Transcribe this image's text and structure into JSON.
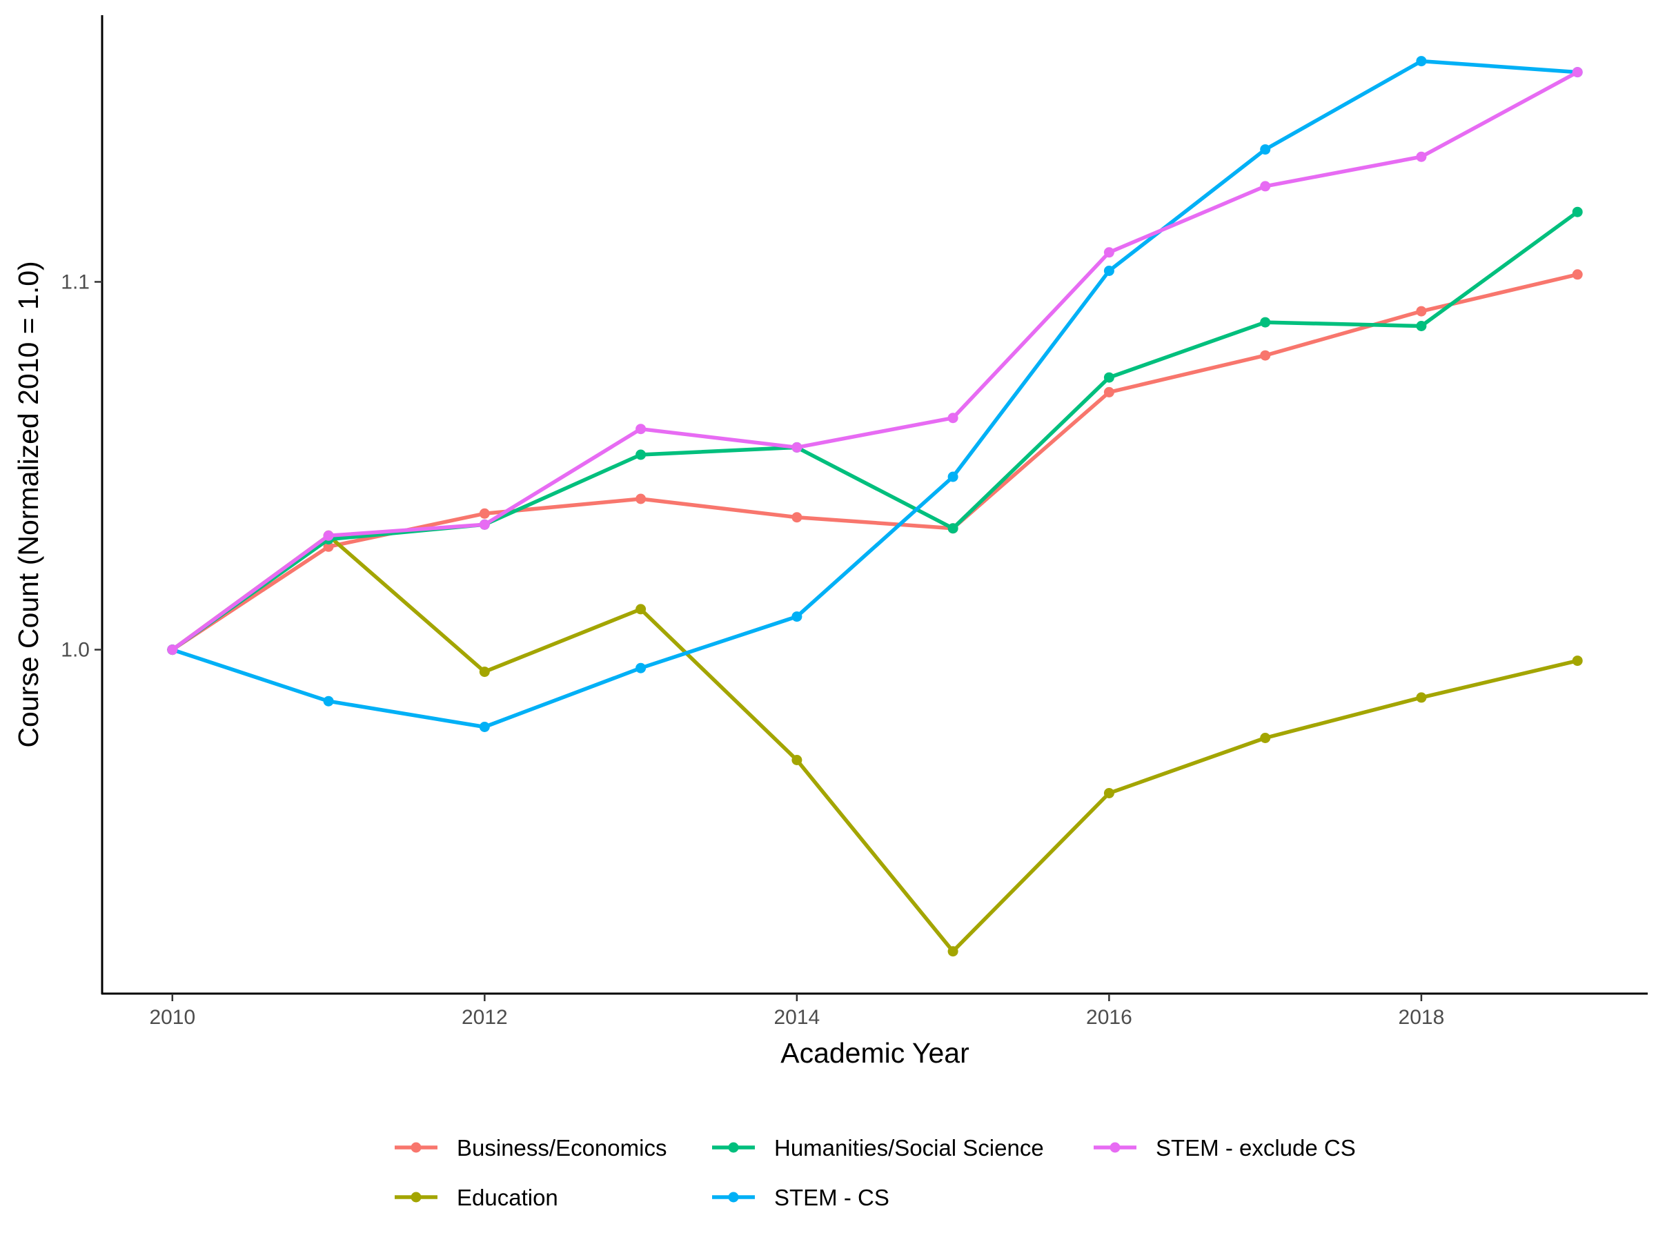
{
  "chart_data": {
    "type": "line",
    "title": "",
    "xlabel": "Academic Year",
    "ylabel": "Course Count (Normalized 2010 = 1.0)",
    "x": [
      2010,
      2011,
      2012,
      2013,
      2014,
      2015,
      2016,
      2017,
      2018,
      2019
    ],
    "xlim": [
      2009.55,
      2019.45
    ],
    "ylim": [
      0.9065,
      1.1725
    ],
    "x_ticks": [
      2010,
      2012,
      2014,
      2016,
      2018
    ],
    "x_tick_labels": [
      "2010",
      "2012",
      "2014",
      "2016",
      "2018"
    ],
    "y_ticks": [
      1.0,
      1.1
    ],
    "y_tick_labels": [
      "1.0",
      "1.1"
    ],
    "grid": false,
    "legend_position": "bottom",
    "series": [
      {
        "name": "Business/Economics",
        "color": "#F8766D",
        "values": [
          1.0,
          1.028,
          1.037,
          1.041,
          1.036,
          1.033,
          1.07,
          1.08,
          1.092,
          1.102
        ]
      },
      {
        "name": "Education",
        "color": "#A3A500",
        "values": [
          1.0,
          1.031,
          0.994,
          1.011,
          0.97,
          0.918,
          0.961,
          0.976,
          0.987,
          0.997
        ]
      },
      {
        "name": "Humanities/Social Science",
        "color": "#00BF7D",
        "values": [
          1.0,
          1.03,
          1.034,
          1.053,
          1.055,
          1.033,
          1.074,
          1.089,
          1.088,
          1.119
        ]
      },
      {
        "name": "STEM - CS",
        "color": "#00B0F6",
        "values": [
          1.0,
          0.986,
          0.979,
          0.995,
          1.009,
          1.047,
          1.103,
          1.136,
          1.16,
          1.157
        ]
      },
      {
        "name": "STEM - exclude CS",
        "color": "#E76BF3",
        "values": [
          1.0,
          1.031,
          1.034,
          1.06,
          1.055,
          1.063,
          1.108,
          1.126,
          1.134,
          1.157
        ]
      }
    ]
  }
}
